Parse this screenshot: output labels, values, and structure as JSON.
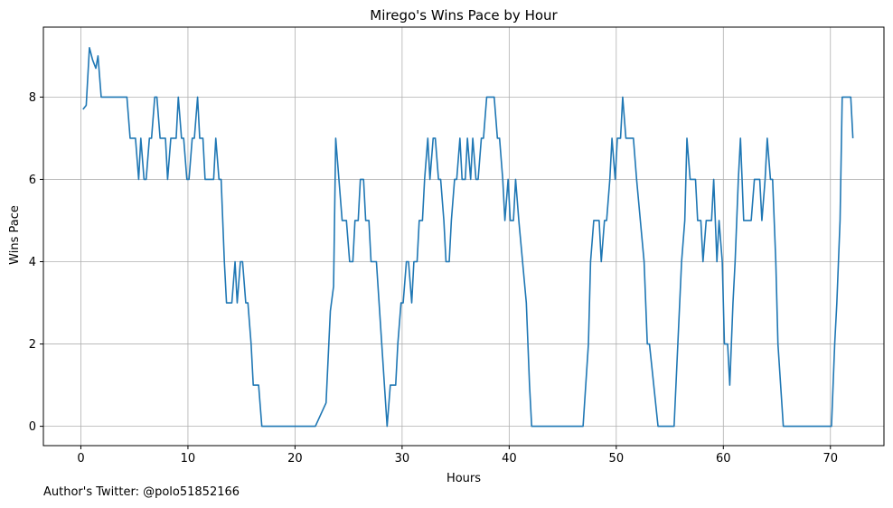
{
  "footer": {
    "author_note": "Author's Twitter: @polo51852166"
  },
  "colors": {
    "line": "#1f77b4",
    "grid": "#b0b0b0",
    "axis": "#000000"
  },
  "chart_data": {
    "type": "line",
    "title": "Mirego's Wins Pace by Hour",
    "xlabel": "Hours",
    "ylabel": "Wins Pace",
    "xlim": [
      -3.5,
      75
    ],
    "ylim": [
      -0.47,
      9.7
    ],
    "xticks": [
      0,
      10,
      20,
      30,
      40,
      50,
      60,
      70
    ],
    "yticks": [
      0,
      2,
      4,
      6,
      8
    ],
    "grid": true,
    "legend": "none",
    "series": [
      {
        "points": [
          [
            0.2,
            7.7
          ],
          [
            0.5,
            7.8
          ],
          [
            0.8,
            9.2
          ],
          [
            1.1,
            8.9
          ],
          [
            1.4,
            8.7
          ],
          [
            1.6,
            9.0
          ],
          [
            1.9,
            8.0
          ],
          [
            4.3,
            8.0
          ],
          [
            4.6,
            7.0
          ],
          [
            5.1,
            7.0
          ],
          [
            5.4,
            6.0
          ],
          [
            5.6,
            7.0
          ],
          [
            5.9,
            6.0
          ],
          [
            6.1,
            6.0
          ],
          [
            6.4,
            7.0
          ],
          [
            6.6,
            7.0
          ],
          [
            6.9,
            8.0
          ],
          [
            7.1,
            8.0
          ],
          [
            7.4,
            7.0
          ],
          [
            7.9,
            7.0
          ],
          [
            8.1,
            6.0
          ],
          [
            8.4,
            7.0
          ],
          [
            8.9,
            7.0
          ],
          [
            9.1,
            8.0
          ],
          [
            9.4,
            7.0
          ],
          [
            9.6,
            7.0
          ],
          [
            9.9,
            6.0
          ],
          [
            10.1,
            6.0
          ],
          [
            10.4,
            7.0
          ],
          [
            10.6,
            7.0
          ],
          [
            10.9,
            8.0
          ],
          [
            11.1,
            7.0
          ],
          [
            11.4,
            7.0
          ],
          [
            11.6,
            6.0
          ],
          [
            12.4,
            6.0
          ],
          [
            12.6,
            7.0
          ],
          [
            12.9,
            6.0
          ],
          [
            13.1,
            6.0
          ],
          [
            13.4,
            4.0
          ],
          [
            13.6,
            3.0
          ],
          [
            14.1,
            3.0
          ],
          [
            14.4,
            4.0
          ],
          [
            14.6,
            3.0
          ],
          [
            14.9,
            4.0
          ],
          [
            15.1,
            4.0
          ],
          [
            15.4,
            3.0
          ],
          [
            15.6,
            3.0
          ],
          [
            15.9,
            2.0
          ],
          [
            16.1,
            1.0
          ],
          [
            16.6,
            1.0
          ],
          [
            16.9,
            0.0
          ],
          [
            21.9,
            0.0
          ],
          [
            22.9,
            0.57
          ],
          [
            23.3,
            2.8
          ],
          [
            23.6,
            3.4
          ],
          [
            23.8,
            7.0
          ],
          [
            24.1,
            6.0
          ],
          [
            24.4,
            5.0
          ],
          [
            24.8,
            5.0
          ],
          [
            25.1,
            4.0
          ],
          [
            25.4,
            4.0
          ],
          [
            25.6,
            5.0
          ],
          [
            25.9,
            5.0
          ],
          [
            26.1,
            6.0
          ],
          [
            26.4,
            6.0
          ],
          [
            26.6,
            5.0
          ],
          [
            26.9,
            5.0
          ],
          [
            27.1,
            4.0
          ],
          [
            27.6,
            4.0
          ],
          [
            28.1,
            2.0
          ],
          [
            28.6,
            0.0
          ],
          [
            28.9,
            1.0
          ],
          [
            29.4,
            1.0
          ],
          [
            29.6,
            2.0
          ],
          [
            29.9,
            3.0
          ],
          [
            30.1,
            3.0
          ],
          [
            30.4,
            4.0
          ],
          [
            30.6,
            4.0
          ],
          [
            30.9,
            3.0
          ],
          [
            31.1,
            4.0
          ],
          [
            31.4,
            4.0
          ],
          [
            31.6,
            5.0
          ],
          [
            31.9,
            5.0
          ],
          [
            32.1,
            6.0
          ],
          [
            32.4,
            7.0
          ],
          [
            32.6,
            6.0
          ],
          [
            32.9,
            7.0
          ],
          [
            33.1,
            7.0
          ],
          [
            33.4,
            6.0
          ],
          [
            33.6,
            6.0
          ],
          [
            33.9,
            5.0
          ],
          [
            34.1,
            4.0
          ],
          [
            34.4,
            4.0
          ],
          [
            34.6,
            5.0
          ],
          [
            34.9,
            6.0
          ],
          [
            35.1,
            6.0
          ],
          [
            35.4,
            7.0
          ],
          [
            35.6,
            6.0
          ],
          [
            35.9,
            6.0
          ],
          [
            36.1,
            7.0
          ],
          [
            36.4,
            6.0
          ],
          [
            36.6,
            7.0
          ],
          [
            36.9,
            6.0
          ],
          [
            37.1,
            6.0
          ],
          [
            37.4,
            7.0
          ],
          [
            37.6,
            7.0
          ],
          [
            37.9,
            8.0
          ],
          [
            38.6,
            8.0
          ],
          [
            38.9,
            7.0
          ],
          [
            39.1,
            7.0
          ],
          [
            39.4,
            6.0
          ],
          [
            39.6,
            5.0
          ],
          [
            39.9,
            6.0
          ],
          [
            40.1,
            5.0
          ],
          [
            40.4,
            5.0
          ],
          [
            40.6,
            6.0
          ],
          [
            40.9,
            5.0
          ],
          [
            41.6,
            3.0
          ],
          [
            41.9,
            1.0
          ],
          [
            42.1,
            0.0
          ],
          [
            46.9,
            0.0
          ],
          [
            47.4,
            2.0
          ],
          [
            47.6,
            4.0
          ],
          [
            47.9,
            5.0
          ],
          [
            48.4,
            5.0
          ],
          [
            48.6,
            4.0
          ],
          [
            48.9,
            5.0
          ],
          [
            49.1,
            5.0
          ],
          [
            49.4,
            6.0
          ],
          [
            49.6,
            7.0
          ],
          [
            49.9,
            6.0
          ],
          [
            50.1,
            7.0
          ],
          [
            50.4,
            7.0
          ],
          [
            50.6,
            8.0
          ],
          [
            50.9,
            7.0
          ],
          [
            51.6,
            7.0
          ],
          [
            51.9,
            6.0
          ],
          [
            52.6,
            4.0
          ],
          [
            52.9,
            2.0
          ],
          [
            53.1,
            2.0
          ],
          [
            53.9,
            0.0
          ],
          [
            55.4,
            0.0
          ],
          [
            56.1,
            4.0
          ],
          [
            56.4,
            5.0
          ],
          [
            56.6,
            7.0
          ],
          [
            56.9,
            6.0
          ],
          [
            57.4,
            6.0
          ],
          [
            57.6,
            5.0
          ],
          [
            57.9,
            5.0
          ],
          [
            58.1,
            4.0
          ],
          [
            58.4,
            5.0
          ],
          [
            58.9,
            5.0
          ],
          [
            59.1,
            6.0
          ],
          [
            59.4,
            4.0
          ],
          [
            59.6,
            5.0
          ],
          [
            59.9,
            4.0
          ],
          [
            60.1,
            2.0
          ],
          [
            60.4,
            2.0
          ],
          [
            60.6,
            1.0
          ],
          [
            60.9,
            3.0
          ],
          [
            61.1,
            4.0
          ],
          [
            61.4,
            6.0
          ],
          [
            61.6,
            7.0
          ],
          [
            61.9,
            5.0
          ],
          [
            62.6,
            5.0
          ],
          [
            62.9,
            6.0
          ],
          [
            63.4,
            6.0
          ],
          [
            63.6,
            5.0
          ],
          [
            63.9,
            6.0
          ],
          [
            64.1,
            7.0
          ],
          [
            64.4,
            6.0
          ],
          [
            64.6,
            6.0
          ],
          [
            64.9,
            4.0
          ],
          [
            65.1,
            2.0
          ],
          [
            65.6,
            0.0
          ],
          [
            70.1,
            0.0
          ],
          [
            70.4,
            2.0
          ],
          [
            70.6,
            3.0
          ],
          [
            70.9,
            5.0
          ],
          [
            71.1,
            8.0
          ],
          [
            71.9,
            8.0
          ],
          [
            72.1,
            7.0
          ]
        ]
      }
    ]
  }
}
